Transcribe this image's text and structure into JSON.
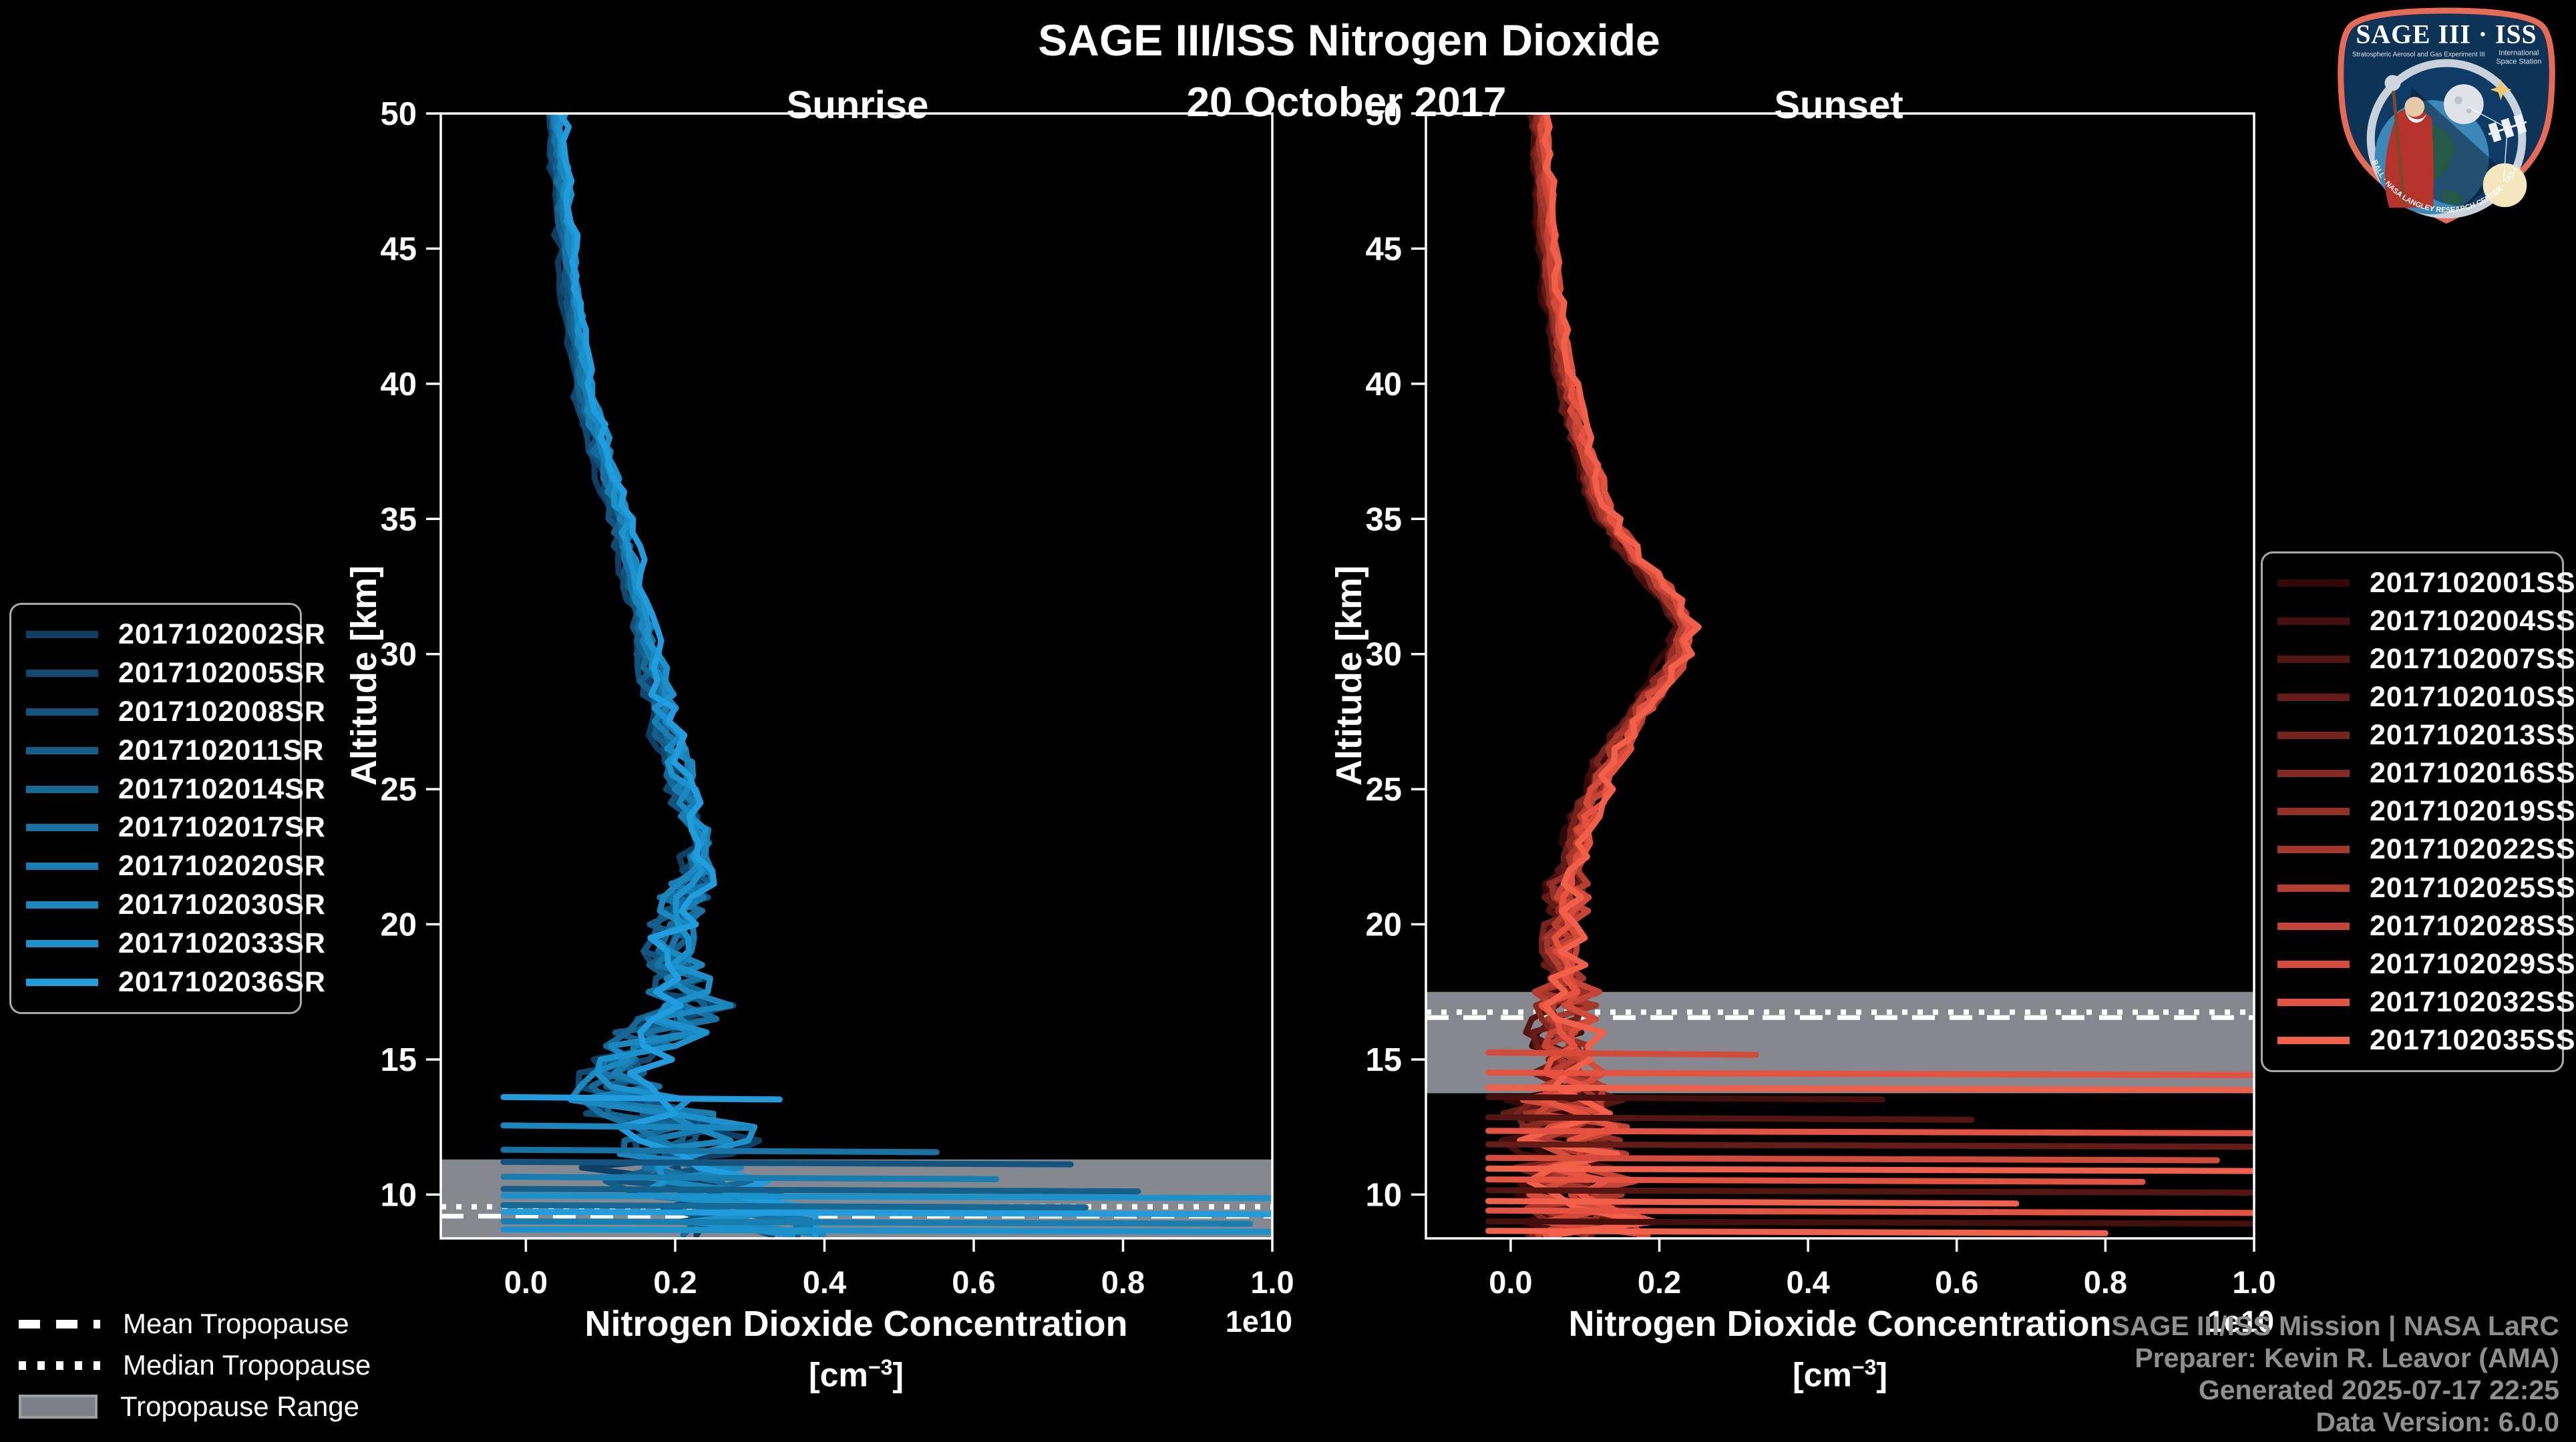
{
  "header": {
    "title": "SAGE III/ISS Nitrogen Dioxide",
    "date": "20 October 2017",
    "left_panel_title": "Sunrise",
    "right_panel_title": "Sunset"
  },
  "chart_data": {
    "type": "line",
    "orientation": "vertical-profile",
    "xlabel": "Nitrogen Dioxide Concentration",
    "xlabel_units_prefix": "[cm",
    "xlabel_units_exponent": "−3",
    "xlabel_units_suffix": "]",
    "ylabel": "Altitude [km]",
    "offset_label": "1e10",
    "xlim": [
      -0.114,
      1.0
    ],
    "ylim": [
      8.38,
      50
    ],
    "grid": false,
    "xticks": {
      "values": [
        0.0,
        0.2,
        0.4,
        0.6,
        0.8,
        1.0
      ],
      "labels": [
        "0.0",
        "0.2",
        "0.4",
        "0.6",
        "0.8",
        "1.0"
      ]
    },
    "yticks": {
      "values": [
        10,
        15,
        20,
        25,
        30,
        35,
        40,
        45,
        50
      ],
      "labels": [
        "10",
        "15",
        "20",
        "25",
        "30",
        "35",
        "40",
        "45",
        "50"
      ]
    },
    "band_color": "#85898f",
    "tropopause_line_color": "#ffffff",
    "panels": [
      {
        "node": "sunrise-plot",
        "title": "Sunrise",
        "legend_position": "left",
        "tropopause": {
          "mean": 9.2,
          "median": 9.55,
          "range": [
            8.38,
            11.3
          ]
        },
        "base_alt": [
          50,
          49,
          48,
          47,
          46,
          45,
          44,
          43,
          42,
          41,
          40,
          39,
          38,
          37,
          36,
          35,
          34,
          33,
          32,
          31,
          30,
          29,
          28,
          27,
          26,
          25,
          24,
          23,
          22,
          21,
          20,
          19,
          18,
          17,
          16,
          15,
          14,
          13,
          12,
          11,
          10,
          9
        ],
        "base_val": [
          0.04,
          0.043,
          0.046,
          0.048,
          0.052,
          0.055,
          0.058,
          0.062,
          0.067,
          0.072,
          0.078,
          0.086,
          0.095,
          0.105,
          0.115,
          0.125,
          0.135,
          0.143,
          0.15,
          0.158,
          0.165,
          0.172,
          0.18,
          0.19,
          0.2,
          0.21,
          0.222,
          0.235,
          0.228,
          0.215,
          0.2,
          0.185,
          0.21,
          0.235,
          0.18,
          0.14,
          0.12,
          0.17,
          0.22,
          0.18,
          0.25,
          0.3
        ],
        "noise": [
          [
            40,
            0.006
          ],
          [
            30,
            0.01
          ],
          [
            22,
            0.018
          ],
          [
            18,
            0.038
          ],
          [
            14,
            0.06
          ],
          [
            0,
            0.105
          ]
        ],
        "spikes": [
          {
            "alt": 13.55,
            "x": 0.34,
            "s": 9
          },
          {
            "alt": 12.5,
            "x": 0.3,
            "s": 7
          },
          {
            "alt": 11.6,
            "x": 0.55,
            "s": 5
          },
          {
            "alt": 11.15,
            "x": 0.73,
            "s": 2
          },
          {
            "alt": 10.6,
            "x": 0.63,
            "s": 6
          },
          {
            "alt": 10.15,
            "x": 0.82,
            "s": 3
          },
          {
            "alt": 9.9,
            "x": 1.02,
            "s": 8
          },
          {
            "alt": 9.55,
            "x": 0.75,
            "s": 4
          },
          {
            "alt": 9.3,
            "x": 1.02,
            "s": 9
          },
          {
            "alt": 8.95,
            "x": 0.97,
            "s": 6
          },
          {
            "alt": 8.65,
            "x": 1.02,
            "s": 8
          }
        ],
        "series": [
          {
            "label": "2017102002SR",
            "color": "#0e3f63"
          },
          {
            "label": "2017102005SR",
            "color": "#104a70"
          },
          {
            "label": "2017102008SR",
            "color": "#12547d"
          },
          {
            "label": "2017102011SR",
            "color": "#135f8a"
          },
          {
            "label": "2017102014SR",
            "color": "#156997"
          },
          {
            "label": "2017102017SR",
            "color": "#1773a4"
          },
          {
            "label": "2017102020SR",
            "color": "#187eb1"
          },
          {
            "label": "2017102030SR",
            "color": "#1a88be"
          },
          {
            "label": "2017102033SR",
            "color": "#1b92cb"
          },
          {
            "label": "2017102036SR",
            "color": "#1f9ddf"
          }
        ]
      },
      {
        "node": "sunset-plot",
        "title": "Sunset",
        "legend_position": "right",
        "tropopause": {
          "mean": 16.55,
          "median": 16.75,
          "range": [
            13.75,
            17.5
          ]
        },
        "base_alt": [
          50,
          49,
          48,
          47,
          46,
          45,
          44,
          43,
          42,
          41,
          40,
          39,
          38,
          37,
          36,
          35,
          34,
          33,
          32,
          31,
          30,
          29,
          28,
          27,
          26,
          25,
          24,
          23,
          22,
          21,
          20,
          19,
          18,
          17,
          16,
          15,
          14,
          13,
          12,
          11,
          10,
          9
        ],
        "base_val": [
          0.038,
          0.04,
          0.042,
          0.044,
          0.047,
          0.05,
          0.053,
          0.057,
          0.062,
          0.068,
          0.075,
          0.083,
          0.092,
          0.103,
          0.115,
          0.13,
          0.155,
          0.185,
          0.215,
          0.235,
          0.225,
          0.205,
          0.178,
          0.152,
          0.13,
          0.115,
          0.1,
          0.09,
          0.082,
          0.076,
          0.072,
          0.07,
          0.07,
          0.075,
          0.07,
          0.075,
          0.078,
          0.072,
          0.078,
          0.085,
          0.095,
          0.105
        ],
        "noise": [
          [
            40,
            0.006
          ],
          [
            30,
            0.01
          ],
          [
            22,
            0.014
          ],
          [
            18,
            0.026
          ],
          [
            14,
            0.046
          ],
          [
            0,
            0.082
          ]
        ],
        "spikes": [
          {
            "alt": 15.2,
            "x": 0.33,
            "s": 10
          },
          {
            "alt": 14.45,
            "x": 1.02,
            "s": 11
          },
          {
            "alt": 13.9,
            "x": 1.02,
            "s": 12
          },
          {
            "alt": 13.55,
            "x": 0.5,
            "s": 1
          },
          {
            "alt": 12.8,
            "x": 0.62,
            "s": 2
          },
          {
            "alt": 12.3,
            "x": 1.02,
            "s": 11
          },
          {
            "alt": 11.8,
            "x": 1.02,
            "s": 3
          },
          {
            "alt": 11.3,
            "x": 0.95,
            "s": 10
          },
          {
            "alt": 10.9,
            "x": 1.02,
            "s": 12
          },
          {
            "alt": 10.5,
            "x": 0.85,
            "s": 11
          },
          {
            "alt": 10.1,
            "x": 1.02,
            "s": 2
          },
          {
            "alt": 9.7,
            "x": 0.68,
            "s": 12
          },
          {
            "alt": 9.35,
            "x": 1.02,
            "s": 11
          },
          {
            "alt": 8.95,
            "x": 1.02,
            "s": 1
          },
          {
            "alt": 8.6,
            "x": 0.8,
            "s": 12
          }
        ],
        "series": [
          {
            "label": "2017102001SS",
            "color": "#350808"
          },
          {
            "label": "2017102004SS",
            "color": "#450f0d"
          },
          {
            "label": "2017102007SS",
            "color": "#551612"
          },
          {
            "label": "2017102010SS",
            "color": "#651c17"
          },
          {
            "label": "2017102013SS",
            "color": "#75231c"
          },
          {
            "label": "2017102016SS",
            "color": "#852a21"
          },
          {
            "label": "2017102019SS",
            "color": "#953026"
          },
          {
            "label": "2017102022SS",
            "color": "#a5372b"
          },
          {
            "label": "2017102025SS",
            "color": "#b53e30"
          },
          {
            "label": "2017102028SS",
            "color": "#c54435"
          },
          {
            "label": "2017102029SS",
            "color": "#d54b3a"
          },
          {
            "label": "2017102032SS",
            "color": "#e5523f"
          },
          {
            "label": "2017102035SS",
            "color": "#f2604a"
          }
        ]
      }
    ]
  },
  "tropopause_legend": [
    {
      "label": "Mean Tropopause",
      "style": "dashed"
    },
    {
      "label": "Median Tropopause",
      "style": "dotted"
    },
    {
      "label": "Tropopause Range",
      "style": "band"
    }
  ],
  "credits": {
    "line1": "SAGE III/ISS Mission | NASA LaRC",
    "line2": "Preparer: Kevin R. Leavor (AMA)",
    "line3": "Generated 2025-07-17 22:25",
    "line4": "Data Version: 6.0.0"
  },
  "logo": {
    "title": "SAGE III · ISS",
    "subtitle_left": "Stratospheric Aerosol and Gas Experiment III",
    "subtitle_right_1": "International",
    "subtitle_right_2": "Space Station",
    "arc_text": "BALL · NASA LANGLEY RESEARCH CENTER · TAS-I · ESA"
  }
}
